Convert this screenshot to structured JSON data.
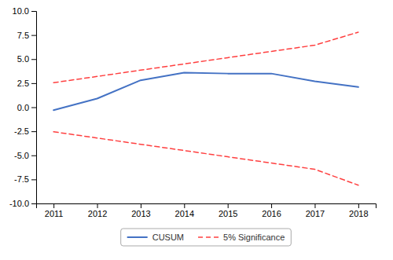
{
  "chart_data": {
    "type": "line",
    "x": [
      2011,
      2012,
      2013,
      2014,
      2015,
      2016,
      2017,
      2018
    ],
    "series": [
      {
        "name": "CUSUM",
        "color": "#4472c4",
        "line_style": "solid",
        "values": [
          -0.3,
          0.9,
          2.8,
          3.6,
          3.5,
          3.5,
          2.7,
          2.1
        ]
      },
      {
        "name": "5% Significance",
        "color": "#ff4040",
        "line_style": "dashed",
        "values": [
          2.55,
          3.2,
          3.85,
          4.5,
          5.15,
          5.8,
          6.45,
          7.8
        ]
      },
      {
        "name": "5% Significance",
        "color": "#ff4040",
        "line_style": "dashed",
        "values": [
          -2.55,
          -3.2,
          -3.85,
          -4.5,
          -5.15,
          -5.8,
          -6.45,
          -8.1
        ]
      }
    ],
    "xlim": [
      2010.6,
      2018.4
    ],
    "xticks": [
      2011,
      2012,
      2013,
      2014,
      2015,
      2016,
      2017,
      2018
    ],
    "ylim": [
      -10.0,
      10.0
    ],
    "yticks": [
      {
        "value": -10.0,
        "label": "-10.0"
      },
      -7.5,
      {
        "value": -5.0,
        "label": "-5.0"
      },
      -2.5,
      {
        "value": 0.0,
        "label": "0.0"
      },
      2.5,
      {
        "value": 5.0,
        "label": "5.0"
      },
      7.5,
      {
        "value": 10.0,
        "label": "10.0"
      }
    ],
    "grid": false,
    "legend": "bottom"
  }
}
